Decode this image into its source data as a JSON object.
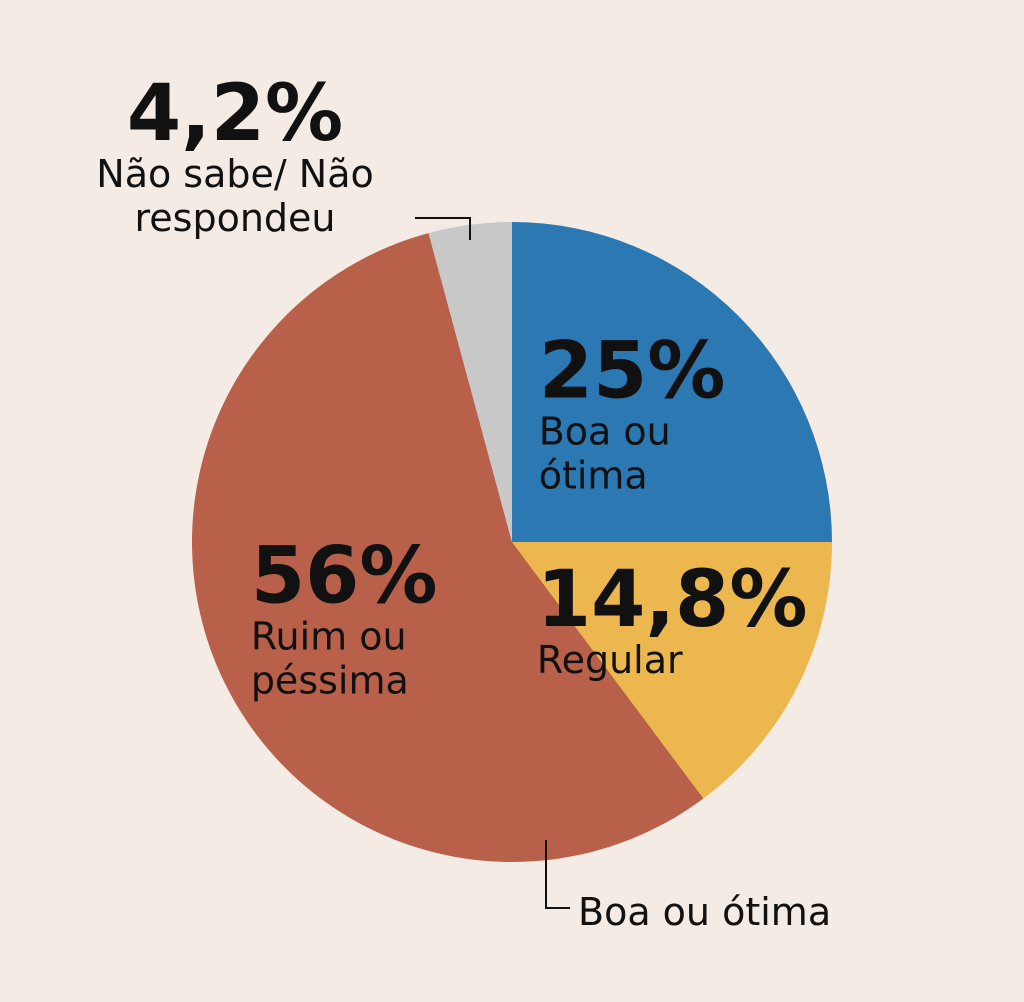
{
  "chart_data": {
    "type": "pie",
    "categories": [
      "Boa ou ótima",
      "Regular",
      "Ruim ou péssima",
      "Não sabe/ Não respondeu"
    ],
    "values": [
      25,
      14.8,
      56,
      4.2
    ],
    "value_labels": [
      "25%",
      "14,8%",
      "56%",
      "4,2%"
    ],
    "colors": [
      "#2b78b2",
      "#ebb74e",
      "#b8604a",
      "#c8c8c8"
    ],
    "annotation": "Boa ou ótima"
  }
}
